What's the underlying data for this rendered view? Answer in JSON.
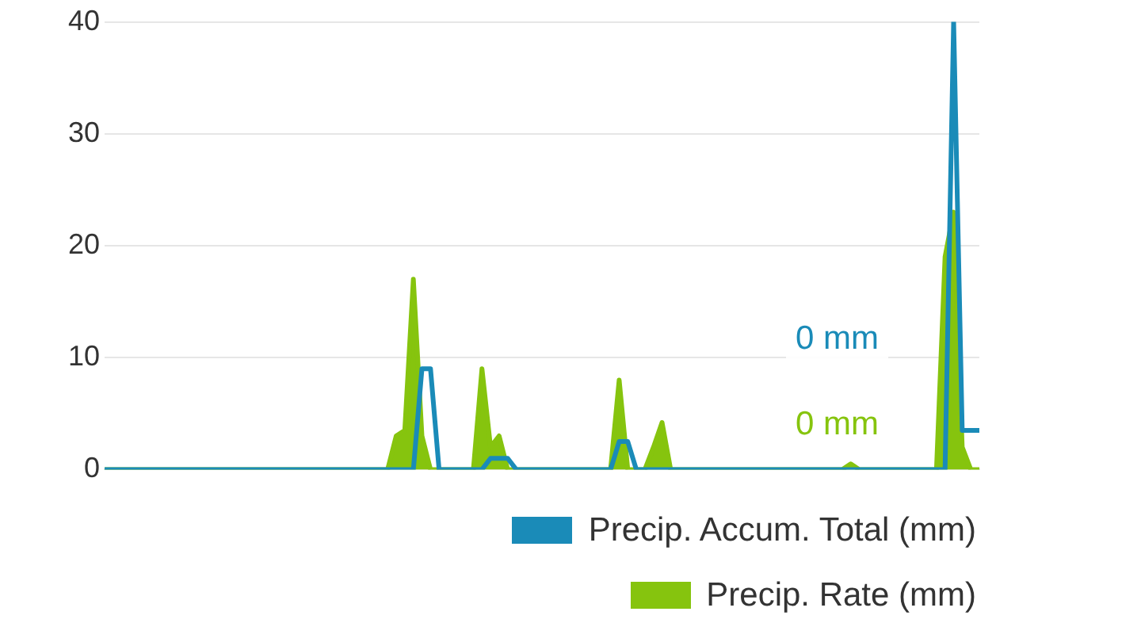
{
  "chart_data": {
    "type": "line",
    "categories": [
      null,
      null,
      null,
      null,
      null,
      null,
      null,
      null,
      null,
      null,
      null,
      null,
      null,
      null,
      null,
      null,
      null,
      null,
      null,
      null,
      null,
      null,
      null,
      null,
      null,
      null,
      null,
      null,
      null,
      null,
      null,
      null,
      null,
      null,
      null,
      null,
      null,
      null,
      null,
      null,
      null,
      null,
      null,
      null,
      null,
      null,
      null,
      null,
      null,
      null,
      null,
      null,
      null,
      null,
      null,
      null,
      null,
      null,
      null,
      null,
      null,
      null,
      null,
      null,
      null,
      null,
      null,
      null,
      null,
      null,
      null,
      null,
      null,
      null,
      null,
      null,
      null,
      null,
      null,
      null,
      null,
      null,
      null,
      null,
      null,
      null,
      null,
      null,
      null,
      null,
      null,
      null,
      null,
      null,
      null,
      null,
      null,
      null,
      null,
      null,
      null,
      null,
      null
    ],
    "series": [
      {
        "name": "Precip. Accum. Total (mm)",
        "color": "#1a8bb8",
        "type": "line",
        "values": [
          0,
          0,
          0,
          0,
          0,
          0,
          0,
          0,
          0,
          0,
          0,
          0,
          0,
          0,
          0,
          0,
          0,
          0,
          0,
          0,
          0,
          0,
          0,
          0,
          0,
          0,
          0,
          0,
          0,
          0,
          0,
          0,
          0,
          0,
          0,
          0,
          0,
          9,
          9,
          0,
          0,
          0,
          0,
          0,
          0,
          1,
          1,
          1,
          0,
          0,
          0,
          0,
          0,
          0,
          0,
          0,
          0,
          0,
          0,
          0,
          2.5,
          2.5,
          0,
          0,
          0,
          0,
          0,
          0,
          0,
          0,
          0,
          0,
          0,
          0,
          0,
          0,
          0,
          0,
          0,
          0,
          0,
          0,
          0,
          0,
          0,
          0,
          0,
          0,
          0,
          0,
          0,
          0,
          0,
          0,
          0,
          0,
          0,
          0,
          0,
          40,
          3.5,
          3.5,
          3.5
        ]
      },
      {
        "name": "Precip. Rate (mm)",
        "color": "#86c40e",
        "type": "area",
        "values": [
          0,
          0,
          0,
          0,
          0,
          0,
          0,
          0,
          0,
          0,
          0,
          0,
          0,
          0,
          0,
          0,
          0,
          0,
          0,
          0,
          0,
          0,
          0,
          0,
          0,
          0,
          0,
          0,
          0,
          0,
          0,
          0,
          0,
          0,
          3,
          3.5,
          17,
          3,
          0,
          0,
          0,
          0,
          0,
          0,
          9,
          2,
          3,
          0,
          0,
          0,
          0,
          0,
          0,
          0,
          0,
          0,
          0,
          0,
          0,
          0,
          8,
          0,
          0,
          0,
          2,
          4.2,
          0,
          0,
          0,
          0,
          0,
          0,
          0,
          0,
          0,
          0,
          0,
          0,
          0,
          0,
          0,
          0,
          0,
          0,
          0,
          0,
          0,
          0.5,
          0,
          0,
          0,
          0,
          0,
          0,
          0,
          0,
          0,
          0,
          19,
          23,
          2,
          0,
          0
        ]
      }
    ],
    "ylim": [
      0,
      40
    ],
    "yticks": [
      0,
      10,
      20,
      30,
      40
    ],
    "grid": "y",
    "legend": "bottom right",
    "marker": "none",
    "tick_labels": "y",
    "annotations": [
      "0 mm",
      "0 mm"
    ]
  }
}
